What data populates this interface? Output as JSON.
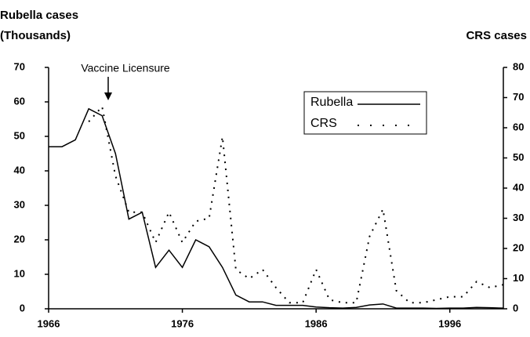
{
  "chart_data": {
    "type": "line",
    "ylabel": [
      "Rubella cases",
      "(Thousands)"
    ],
    "y2label": "CRS cases",
    "annotation": "Vaccine Licensure",
    "x": [
      1966,
      1967,
      1968,
      1969,
      1970,
      1971,
      1972,
      1973,
      1974,
      1975,
      1976,
      1977,
      1978,
      1979,
      1980,
      1981,
      1982,
      1983,
      1984,
      1985,
      1986,
      1987,
      1988,
      1989,
      1990,
      1991,
      1992,
      1993,
      1994,
      1995,
      1996,
      1997,
      1998,
      1999,
      2000
    ],
    "series": [
      {
        "name": "Rubella",
        "color": "#000000",
        "style": "solid",
        "values": [
          47,
          47,
          49,
          58,
          56,
          45,
          26,
          28,
          12,
          17,
          12,
          20,
          18,
          12,
          4,
          2,
          2,
          1,
          1,
          1,
          0.5,
          0.3,
          0.2,
          0.4,
          1.1,
          1.4,
          0.2,
          0.2,
          0.2,
          0.1,
          0.2,
          0.2,
          0.4,
          0.3,
          0.2
        ]
      },
      {
        "name": "CRS",
        "color": "#000000",
        "style": "dotted",
        "axis": "y2",
        "values": [
          null,
          null,
          null,
          62,
          67,
          44,
          32,
          32,
          22,
          32,
          22,
          29,
          30,
          57,
          13,
          10,
          13,
          7,
          2,
          2,
          13,
          3,
          2,
          2,
          24,
          33,
          6,
          2,
          2,
          3,
          4,
          4,
          9,
          7,
          8
        ]
      }
    ],
    "xlim": [
      1966,
      2000
    ],
    "xticks": [
      1966,
      1976,
      1986,
      1996
    ],
    "ylim": [
      0,
      70
    ],
    "yticks": [
      0,
      10,
      20,
      30,
      40,
      50,
      60,
      70
    ],
    "y2lim": [
      0,
      80
    ],
    "y2ticks": [
      0,
      10,
      20,
      30,
      40,
      50,
      60,
      70,
      80
    ],
    "legend": "upper right"
  }
}
